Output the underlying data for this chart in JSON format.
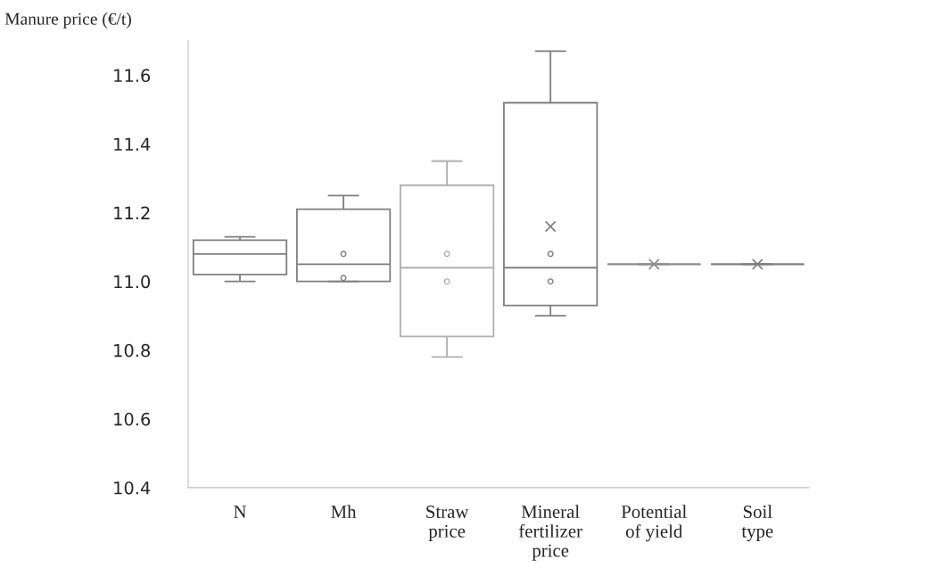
{
  "chart_data": {
    "type": "box",
    "ylabel": "Manure price (€/t)",
    "categories": [
      "N",
      "Mh",
      "Straw\nprice",
      "Mineral\nfertilizer\nprice",
      "Potential\nof yield",
      "Soil\ntype"
    ],
    "colors": [
      "#7f7f7f",
      "#7f7f7f",
      "#b0b0b0",
      "#7f7f7f",
      "#8c8c8c",
      "#7f7f7f"
    ],
    "boxes": [
      {
        "low": 11.0,
        "q1": 11.02,
        "median": 11.08,
        "q3": 11.12,
        "high": 11.13
      },
      {
        "low": 11.0,
        "q1": 11.0,
        "median": 11.05,
        "q3": 11.21,
        "high": 11.25,
        "outliers": [
          11.08,
          11.01
        ]
      },
      {
        "low": 10.78,
        "q1": 10.84,
        "median": 11.04,
        "q3": 11.28,
        "high": 11.35,
        "outliers": [
          11.08,
          11.0
        ]
      },
      {
        "low": 10.9,
        "q1": 10.93,
        "median": 11.04,
        "q3": 11.52,
        "high": 11.67,
        "mean": 11.16,
        "outliers": [
          11.08,
          11.0
        ]
      },
      {
        "low": 11.05,
        "q1": 11.05,
        "median": 11.05,
        "q3": 11.05,
        "high": 11.05,
        "mean": 11.05
      },
      {
        "low": 11.05,
        "q1": 11.05,
        "median": 11.05,
        "q3": 11.05,
        "high": 11.05,
        "mean": 11.05
      }
    ],
    "ylim": [
      10.4,
      11.7
    ],
    "yticks": [
      {
        "value": 10.4,
        "label": "10.4"
      },
      {
        "value": 10.6,
        "label": "10.6"
      },
      {
        "value": 10.8,
        "label": "10.8"
      },
      {
        "value": 11.0,
        "label": "11.0"
      },
      {
        "value": 11.2,
        "label": "11.2"
      },
      {
        "value": 11.4,
        "label": "11.4"
      },
      {
        "value": 11.6,
        "label": "11.6"
      }
    ],
    "grid": false,
    "legend": false
  }
}
